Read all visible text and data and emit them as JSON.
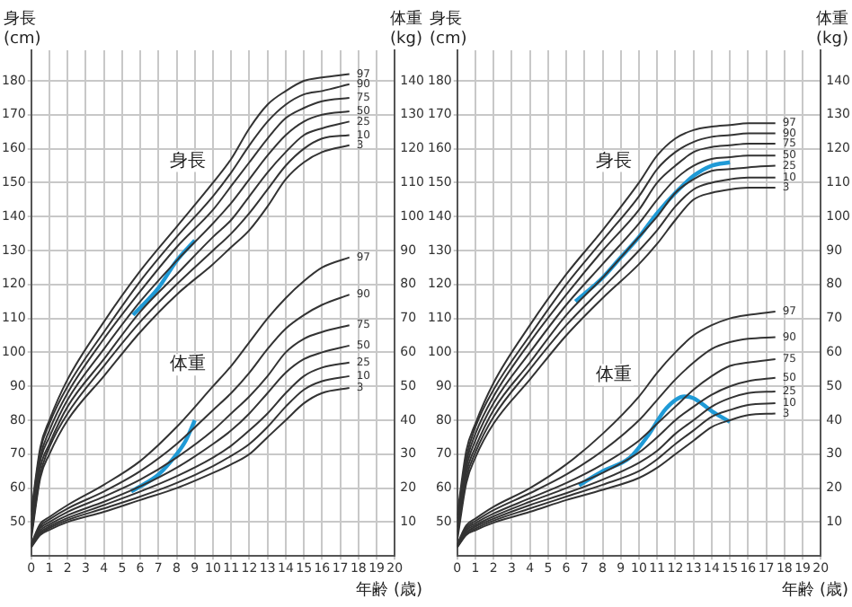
{
  "chart_data": [
    {
      "type": "line",
      "xlabel": "年齢 (歳)",
      "ylabel": "身長 (cm)",
      "y2label": "体重 (kg)",
      "marker": "none",
      "grid": true,
      "x": [
        0,
        0.5,
        1,
        2,
        4,
        6,
        8,
        10,
        11,
        12,
        13,
        14,
        15,
        16,
        17.5
      ],
      "xlim": [
        0,
        20
      ],
      "xticks": [
        0,
        1,
        2,
        3,
        4,
        5,
        6,
        7,
        8,
        9,
        10,
        11,
        12,
        13,
        14,
        15,
        16,
        17,
        18,
        19,
        20
      ],
      "ylim": [
        40,
        189
      ],
      "yticks": [
        50,
        60,
        70,
        80,
        90,
        100,
        110,
        120,
        130,
        140,
        150,
        160,
        170,
        180
      ],
      "y2lim": [
        0,
        149
      ],
      "y2ticks": [
        10,
        20,
        30,
        40,
        50,
        60,
        70,
        80,
        90,
        100,
        110,
        120,
        130,
        140
      ],
      "annotations": [
        "身長",
        "体重"
      ],
      "series": [
        {
          "name": "97",
          "color": "#333333",
          "values": [
            53,
            72,
            80,
            92,
            109,
            124,
            137,
            150,
            157,
            166,
            173,
            177,
            180,
            181,
            182
          ]
        },
        {
          "name": "90",
          "color": "#333333",
          "values": [
            52,
            71,
            79,
            90,
            106,
            121,
            134,
            146,
            153,
            161,
            168,
            173,
            176,
            177,
            179
          ]
        },
        {
          "name": "75",
          "color": "#333333",
          "values": [
            50,
            69,
            77,
            88,
            104,
            118,
            131,
            142,
            149,
            156,
            163,
            169,
            172,
            174,
            175
          ]
        },
        {
          "name": "50",
          "color": "#333333",
          "values": [
            49,
            68,
            75,
            86,
            101,
            115,
            127,
            138,
            144,
            151,
            158,
            164,
            168,
            170,
            171
          ]
        },
        {
          "name": "25",
          "color": "#333333",
          "values": [
            48,
            66,
            73,
            84,
            98,
            112,
            123,
            134,
            139,
            146,
            153,
            159,
            164,
            166,
            168
          ]
        },
        {
          "name": "10",
          "color": "#333333",
          "values": [
            46,
            64,
            72,
            82,
            96,
            109,
            120,
            130,
            135,
            141,
            148,
            155,
            160,
            163,
            164
          ]
        },
        {
          "name": "3",
          "color": "#333333",
          "values": [
            45,
            63,
            70,
            80,
            93,
            106,
            117,
            126,
            131,
            136,
            143,
            151,
            156,
            159,
            161
          ]
        },
        {
          "name": "97",
          "color": "#333333",
          "axis": "y2",
          "values": [
            3.6,
            9.5,
            11.5,
            15,
            21,
            28,
            38,
            50,
            56,
            63,
            70,
            76,
            81,
            85,
            88
          ]
        },
        {
          "name": "90",
          "color": "#333333",
          "axis": "y2",
          "values": [
            3.4,
            8.8,
            10.8,
            14,
            19,
            25,
            33,
            43,
            48,
            54,
            61,
            67,
            71,
            74,
            77
          ]
        },
        {
          "name": "75",
          "color": "#333333",
          "axis": "y2",
          "values": [
            3.2,
            8.2,
            10,
            13,
            17.5,
            22.5,
            29,
            37,
            42,
            47,
            53,
            60,
            64,
            66,
            68
          ]
        },
        {
          "name": "50",
          "color": "#333333",
          "axis": "y2",
          "values": [
            3,
            7.5,
            9.3,
            12,
            16,
            20.5,
            26,
            33,
            37,
            42,
            48,
            54,
            58,
            60,
            62
          ]
        },
        {
          "name": "25",
          "color": "#333333",
          "axis": "y2",
          "values": [
            2.9,
            7,
            8.7,
            11.2,
            15,
            19,
            23.5,
            29,
            32.5,
            37,
            42,
            48,
            53,
            55.5,
            57
          ]
        },
        {
          "name": "10",
          "color": "#333333",
          "axis": "y2",
          "values": [
            2.7,
            6.6,
            8.2,
            10.6,
            14,
            17.5,
            21.5,
            26.5,
            29.5,
            33,
            38,
            44,
            49,
            51.5,
            53
          ]
        },
        {
          "name": "3",
          "color": "#333333",
          "axis": "y2",
          "values": [
            2.5,
            6.2,
            7.7,
            10,
            13,
            16.5,
            20,
            24.5,
            27,
            30,
            35,
            40,
            45,
            48,
            49.5
          ]
        },
        {
          "color": "#1f9ad6",
          "x": [
            5.6,
            7,
            8,
            9
          ],
          "values": [
            111,
            119,
            127,
            133
          ]
        },
        {
          "color": "#1f9ad6",
          "axis": "y2",
          "x": [
            5.5,
            6,
            7,
            8,
            8.5,
            9
          ],
          "values": [
            19,
            20.5,
            24,
            30,
            34,
            40
          ]
        }
      ]
    },
    {
      "type": "line",
      "xlabel": "年齢 (歳)",
      "ylabel": "身長 (cm)",
      "y2label": "体重 (kg)",
      "marker": "none",
      "grid": true,
      "x": [
        0,
        0.5,
        1,
        2,
        4,
        6,
        8,
        10,
        11,
        12,
        13,
        14,
        15,
        16,
        17.5
      ],
      "xlim": [
        0,
        20
      ],
      "xticks": [
        0,
        1,
        2,
        3,
        4,
        5,
        6,
        7,
        8,
        9,
        10,
        11,
        12,
        13,
        14,
        15,
        16,
        17,
        18,
        19,
        20
      ],
      "ylim": [
        40,
        189
      ],
      "yticks": [
        50,
        60,
        70,
        80,
        90,
        100,
        110,
        120,
        130,
        140,
        150,
        160,
        170,
        180
      ],
      "y2lim": [
        0,
        149
      ],
      "y2ticks": [
        10,
        20,
        30,
        40,
        50,
        60,
        70,
        80,
        90,
        100,
        110,
        120,
        130,
        140
      ],
      "annotations": [
        "身長",
        "体重"
      ],
      "series": [
        {
          "name": "97",
          "color": "#333333",
          "values": [
            52,
            71,
            79,
            91,
            108,
            123,
            136,
            150,
            158,
            163,
            165.5,
            166.5,
            167,
            167.5,
            167.5
          ]
        },
        {
          "name": "90",
          "color": "#333333",
          "values": [
            51,
            69,
            78,
            89,
            105,
            120,
            133,
            146,
            154,
            159,
            162,
            163.5,
            164,
            164.5,
            164.5
          ]
        },
        {
          "name": "75",
          "color": "#333333",
          "values": [
            50,
            67.5,
            76,
            87,
            103,
            117,
            130,
            142,
            150,
            155,
            159,
            160.5,
            161,
            161.5,
            161.5
          ]
        },
        {
          "name": "50",
          "color": "#333333",
          "values": [
            48.5,
            66,
            74,
            85,
            100,
            114,
            126,
            138,
            145,
            151,
            155,
            157,
            157.5,
            158,
            158
          ]
        },
        {
          "name": "25",
          "color": "#333333",
          "values": [
            47,
            64.5,
            72,
            83,
            97,
            111,
            122,
            134,
            140,
            147,
            151,
            153.5,
            154,
            154.5,
            155
          ]
        },
        {
          "name": "10",
          "color": "#333333",
          "values": [
            46,
            63,
            70.5,
            81,
            95,
            108,
            119,
            130,
            136,
            143,
            148,
            150,
            151,
            151.5,
            151.5
          ]
        },
        {
          "name": "3",
          "color": "#333333",
          "values": [
            44.5,
            61.5,
            69,
            79,
            92,
            105,
            116,
            126,
            132,
            139,
            145,
            147,
            148,
            148.5,
            148.5
          ]
        },
        {
          "name": "97",
          "color": "#333333",
          "axis": "y2",
          "values": [
            3.5,
            9,
            11,
            14.5,
            20,
            27,
            36,
            47,
            54,
            60,
            65,
            68,
            70,
            71,
            72
          ]
        },
        {
          "name": "90",
          "color": "#333333",
          "axis": "y2",
          "values": [
            3.3,
            8.5,
            10.3,
            13.5,
            18.5,
            24,
            31,
            40,
            46,
            52,
            57,
            61,
            63,
            64,
            64.5
          ]
        },
        {
          "name": "75",
          "color": "#333333",
          "axis": "y2",
          "values": [
            3.1,
            8,
            9.7,
            12.5,
            17,
            21.5,
            27,
            34,
            39,
            44,
            49,
            53,
            56,
            57,
            58
          ]
        },
        {
          "name": "50",
          "color": "#333333",
          "axis": "y2",
          "values": [
            3,
            7.5,
            9.1,
            11.7,
            16,
            20,
            24.5,
            30.5,
            35,
            40,
            44,
            47.5,
            50,
            51.5,
            52.5
          ]
        },
        {
          "name": "25",
          "color": "#333333",
          "axis": "y2",
          "values": [
            2.9,
            7,
            8.6,
            11,
            15,
            18.5,
            22.5,
            27.5,
            31,
            36,
            40,
            44,
            46.5,
            48,
            48.5
          ]
        },
        {
          "name": "10",
          "color": "#333333",
          "axis": "y2",
          "values": [
            2.7,
            6.6,
            8.1,
            10.4,
            14,
            17.5,
            21,
            25,
            28.5,
            33,
            37,
            41,
            43,
            44.5,
            45
          ]
        },
        {
          "name": "3",
          "color": "#333333",
          "axis": "y2",
          "values": [
            2.5,
            6.2,
            7.6,
            9.8,
            13,
            16.5,
            19.5,
            23,
            26,
            30,
            34,
            38,
            40,
            41.5,
            42
          ]
        },
        {
          "color": "#1f9ad6",
          "x": [
            6.5,
            8,
            9,
            10,
            11,
            12,
            13,
            14,
            15
          ],
          "values": [
            115,
            122,
            128,
            134,
            141,
            147,
            152,
            155,
            156
          ]
        },
        {
          "color": "#1f9ad6",
          "axis": "y2",
          "x": [
            6.7,
            8,
            9.5,
            10.5,
            11.5,
            12.5,
            13,
            14,
            15
          ],
          "values": [
            20.8,
            25,
            29,
            35.5,
            43.5,
            47,
            46.5,
            42.7,
            39.5
          ]
        }
      ]
    }
  ]
}
